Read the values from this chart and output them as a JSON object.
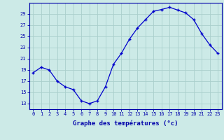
{
  "hours": [
    0,
    1,
    2,
    3,
    4,
    5,
    6,
    7,
    8,
    9,
    10,
    11,
    12,
    13,
    14,
    15,
    16,
    17,
    18,
    19,
    20,
    21,
    22,
    23
  ],
  "temperatures": [
    18.5,
    19.5,
    19.0,
    17.0,
    16.0,
    15.5,
    13.5,
    13.0,
    13.5,
    16.0,
    20.0,
    22.0,
    24.5,
    26.5,
    28.0,
    29.5,
    29.8,
    30.2,
    29.7,
    29.2,
    28.0,
    25.5,
    23.5,
    22.0
  ],
  "xlim": [
    -0.5,
    23.5
  ],
  "ylim": [
    12,
    31
  ],
  "yticks": [
    13,
    15,
    17,
    19,
    21,
    23,
    25,
    27,
    29
  ],
  "xtick_labels": [
    "0",
    "1",
    "2",
    "3",
    "4",
    "5",
    "6",
    "7",
    "8",
    "9",
    "10",
    "11",
    "12",
    "13",
    "14",
    "15",
    "16",
    "17",
    "18",
    "19",
    "20",
    "21",
    "22",
    "23"
  ],
  "xlabel": "Graphe des températures (°c)",
  "line_color": "#0000cc",
  "marker": "+",
  "marker_size": 3.5,
  "marker_lw": 1.0,
  "line_width": 0.9,
  "bg_color": "#cceae7",
  "grid_color": "#aacfcc",
  "xlabel_color": "#0000aa",
  "tick_color": "#0000aa",
  "axis_color": "#0000aa",
  "tick_fontsize": 5.0,
  "xlabel_fontsize": 6.5
}
